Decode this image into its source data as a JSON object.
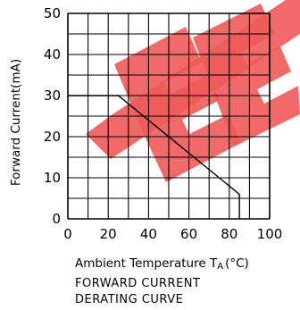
{
  "chart_data": {
    "type": "line",
    "xlabel": "Ambient Temperature T",
    "xlabel_sub": "A",
    "xlabel_unit": "(°C)",
    "ylabel": "Forward Current(mA)",
    "xlim": [
      0,
      100
    ],
    "ylim": [
      0,
      50
    ],
    "x_ticks": [
      "0",
      "20",
      "40",
      "60",
      "80",
      "100"
    ],
    "y_ticks": [
      "0",
      "10",
      "20",
      "30",
      "40",
      "50"
    ],
    "grid": true,
    "series": [
      {
        "x": [
          0,
          25,
          85,
          85
        ],
        "y": [
          30,
          30,
          6,
          0
        ]
      }
    ],
    "caption_lines": [
      "FORWARD  CURRENT",
      "DERATING  CURVE"
    ],
    "watermark_color": "#f05a5a",
    "line_color": "#000000"
  }
}
